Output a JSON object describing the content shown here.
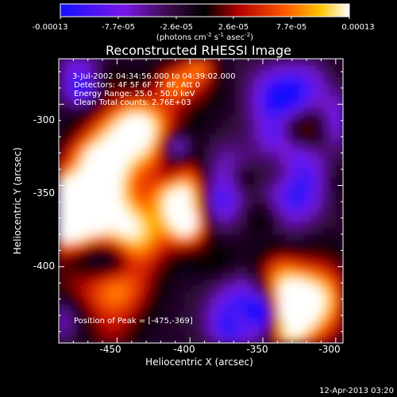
{
  "colorbar": {
    "tick_labels": [
      "-0.00013",
      "-7.7e-05",
      "-2.6e-05",
      "2.6e-05",
      "7.7e-05",
      "0.00013"
    ],
    "range": [
      -0.00013,
      0.00013
    ],
    "units_main": "(photons cm",
    "units_sup1": "-2",
    "units_mid": " s",
    "units_sup2": "-1",
    "units_tail": " asec",
    "units_sup3": "-2",
    "units_close": ")"
  },
  "plot": {
    "title": "Reconstructed RHESSI Image",
    "xlabel": "Heliocentric X (arcsec)",
    "ylabel": "Heliocentric Y (arcsec)",
    "x_ticks": [
      "-450",
      "-400",
      "-350",
      "-300"
    ],
    "y_ticks": [
      "-300",
      "-350",
      "-400"
    ],
    "xlim": [
      -490,
      -295
    ],
    "ylim": [
      -447,
      -272
    ],
    "annotations": [
      "3-Jul-2002 04:34:56.000 to 04:39:02.000",
      "Detectors: 4F 5F 6F 7F 8F, Att 0",
      "Energy Range: 25.0 - 50.0 keV",
      "Clean    Total counts: 2.76E+03"
    ],
    "peak_text": "Position of Peak = [-475,-369]",
    "peak": [
      -475,
      -369
    ]
  },
  "timestamp": "12-Apr-2013 03:20",
  "colormap_stops": [
    "#0000ff",
    "#8000ff",
    "#000000",
    "#ff0000",
    "#ffaa00",
    "#ffffff"
  ]
}
